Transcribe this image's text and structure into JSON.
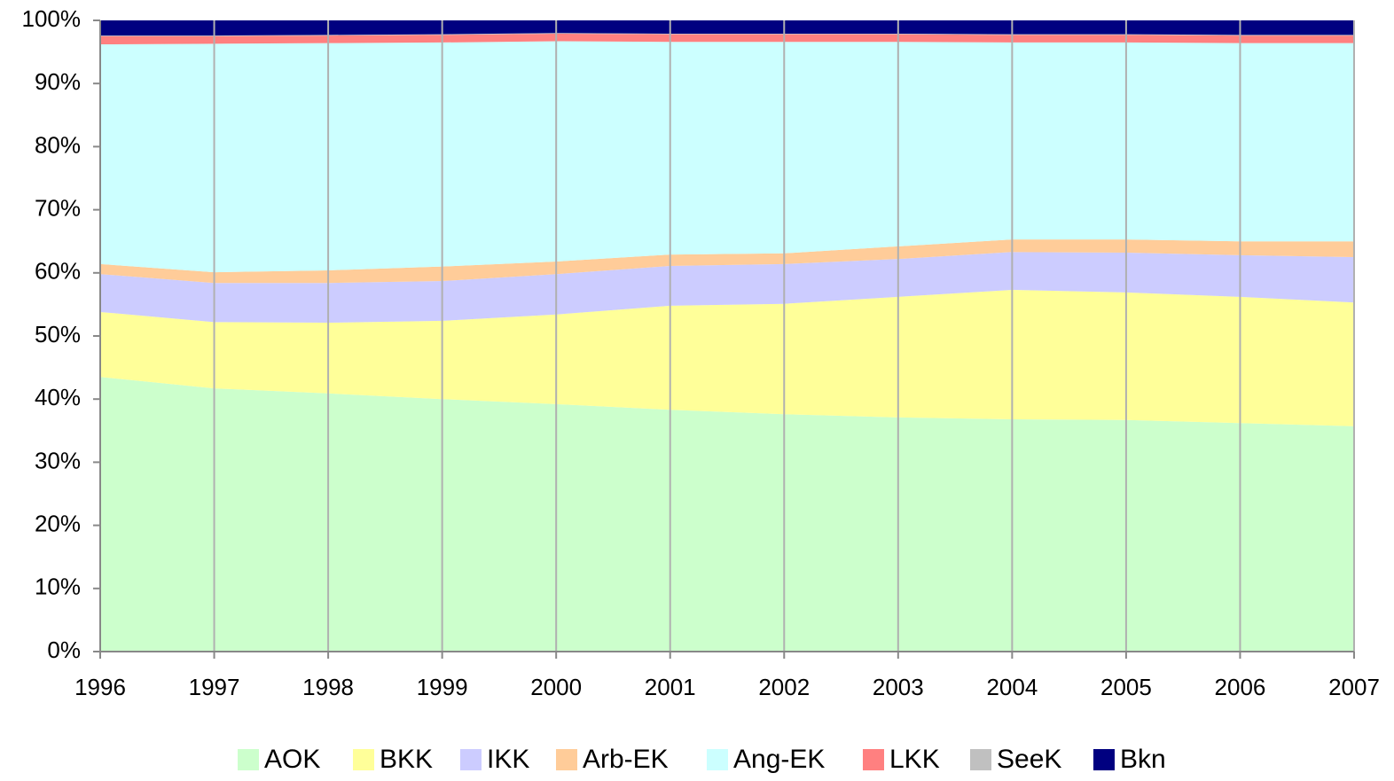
{
  "chart_data": {
    "type": "stacked-area-percent",
    "categories": [
      "1996",
      "1997",
      "1998",
      "1999",
      "2000",
      "2001",
      "2002",
      "2003",
      "2004",
      "2005",
      "2006",
      "2007"
    ],
    "series": [
      {
        "name": "AOK",
        "color": "#ccffcc",
        "values": [
          43.5,
          41.7,
          40.9,
          40.0,
          39.2,
          38.3,
          37.6,
          37.1,
          36.8,
          36.7,
          36.2,
          35.7
        ]
      },
      {
        "name": "BKK",
        "color": "#ffff99",
        "values": [
          10.3,
          10.5,
          11.2,
          12.4,
          14.2,
          16.5,
          17.5,
          19.1,
          20.5,
          20.2,
          20.0,
          19.6
        ]
      },
      {
        "name": "IKK",
        "color": "#ccccff",
        "values": [
          6.0,
          6.2,
          6.3,
          6.3,
          6.4,
          6.3,
          6.3,
          6.0,
          6.0,
          6.3,
          6.6,
          7.2
        ]
      },
      {
        "name": "Arb-EK",
        "color": "#ffcc99",
        "values": [
          1.6,
          1.7,
          2.0,
          2.3,
          2.0,
          1.8,
          1.7,
          2.0,
          2.0,
          2.1,
          2.2,
          2.5
        ]
      },
      {
        "name": "Ang-EK",
        "color": "#ccffff",
        "values": [
          34.8,
          36.2,
          36.0,
          35.5,
          34.9,
          33.7,
          33.5,
          32.4,
          31.2,
          31.2,
          31.4,
          31.4
        ]
      },
      {
        "name": "LKK",
        "color": "#ff8080",
        "values": [
          1.3,
          1.2,
          1.2,
          1.2,
          1.2,
          1.2,
          1.2,
          1.2,
          1.2,
          1.2,
          1.2,
          1.2
        ]
      },
      {
        "name": "SeeK",
        "color": "#c0c0c0",
        "values": [
          0.1,
          0.1,
          0.1,
          0.1,
          0.1,
          0.1,
          0.1,
          0.1,
          0.1,
          0.1,
          0.1,
          0.1
        ]
      },
      {
        "name": "Bkn",
        "color": "#000080",
        "values": [
          2.4,
          2.4,
          2.3,
          2.2,
          2.0,
          2.1,
          2.1,
          2.1,
          2.2,
          2.2,
          2.3,
          2.3
        ]
      }
    ],
    "ylim": [
      0,
      100
    ],
    "yticks": [
      {
        "value": 0,
        "label": "0%"
      },
      {
        "value": 10,
        "label": "10%"
      },
      {
        "value": 20,
        "label": "20%"
      },
      {
        "value": 30,
        "label": "30%"
      },
      {
        "value": 40,
        "label": "40%"
      },
      {
        "value": 50,
        "label": "50%"
      },
      {
        "value": 60,
        "label": "60%"
      },
      {
        "value": 70,
        "label": "70%"
      },
      {
        "value": 80,
        "label": "80%"
      },
      {
        "value": 90,
        "label": "90%"
      },
      {
        "value": 100,
        "label": "100%"
      }
    ],
    "grid": true,
    "legend": "bottom"
  }
}
